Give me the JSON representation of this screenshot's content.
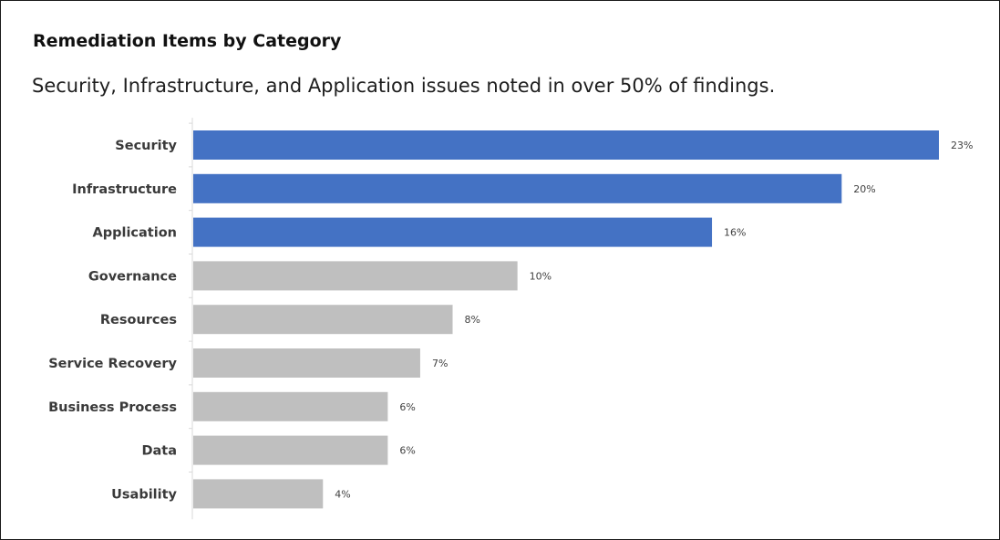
{
  "chart_data": {
    "type": "bar",
    "orientation": "horizontal",
    "title": "Remediation Items by Category",
    "subtitle": "Security, Infrastructure, and Application issues noted in over 50% of findings.",
    "xlabel": "",
    "ylabel": "",
    "categories": [
      "Security",
      "Infrastructure",
      "Application",
      "Governance",
      "Resources",
      "Service Recovery",
      "Business Process",
      "Data",
      "Usability"
    ],
    "values": [
      23,
      20,
      16,
      10,
      8,
      7,
      6,
      6,
      4
    ],
    "value_labels": [
      "23%",
      "20%",
      "16%",
      "10%",
      "8%",
      "7%",
      "6%",
      "6%",
      "4%"
    ],
    "unit": "%",
    "xlim": [
      0,
      23
    ],
    "highlighted": [
      true,
      true,
      true,
      false,
      false,
      false,
      false,
      false,
      false
    ],
    "colors": {
      "highlight": "#4472C4",
      "default": "#BFBFBF",
      "axis": "#D9D9D9"
    },
    "grid": false,
    "legend": "none"
  }
}
